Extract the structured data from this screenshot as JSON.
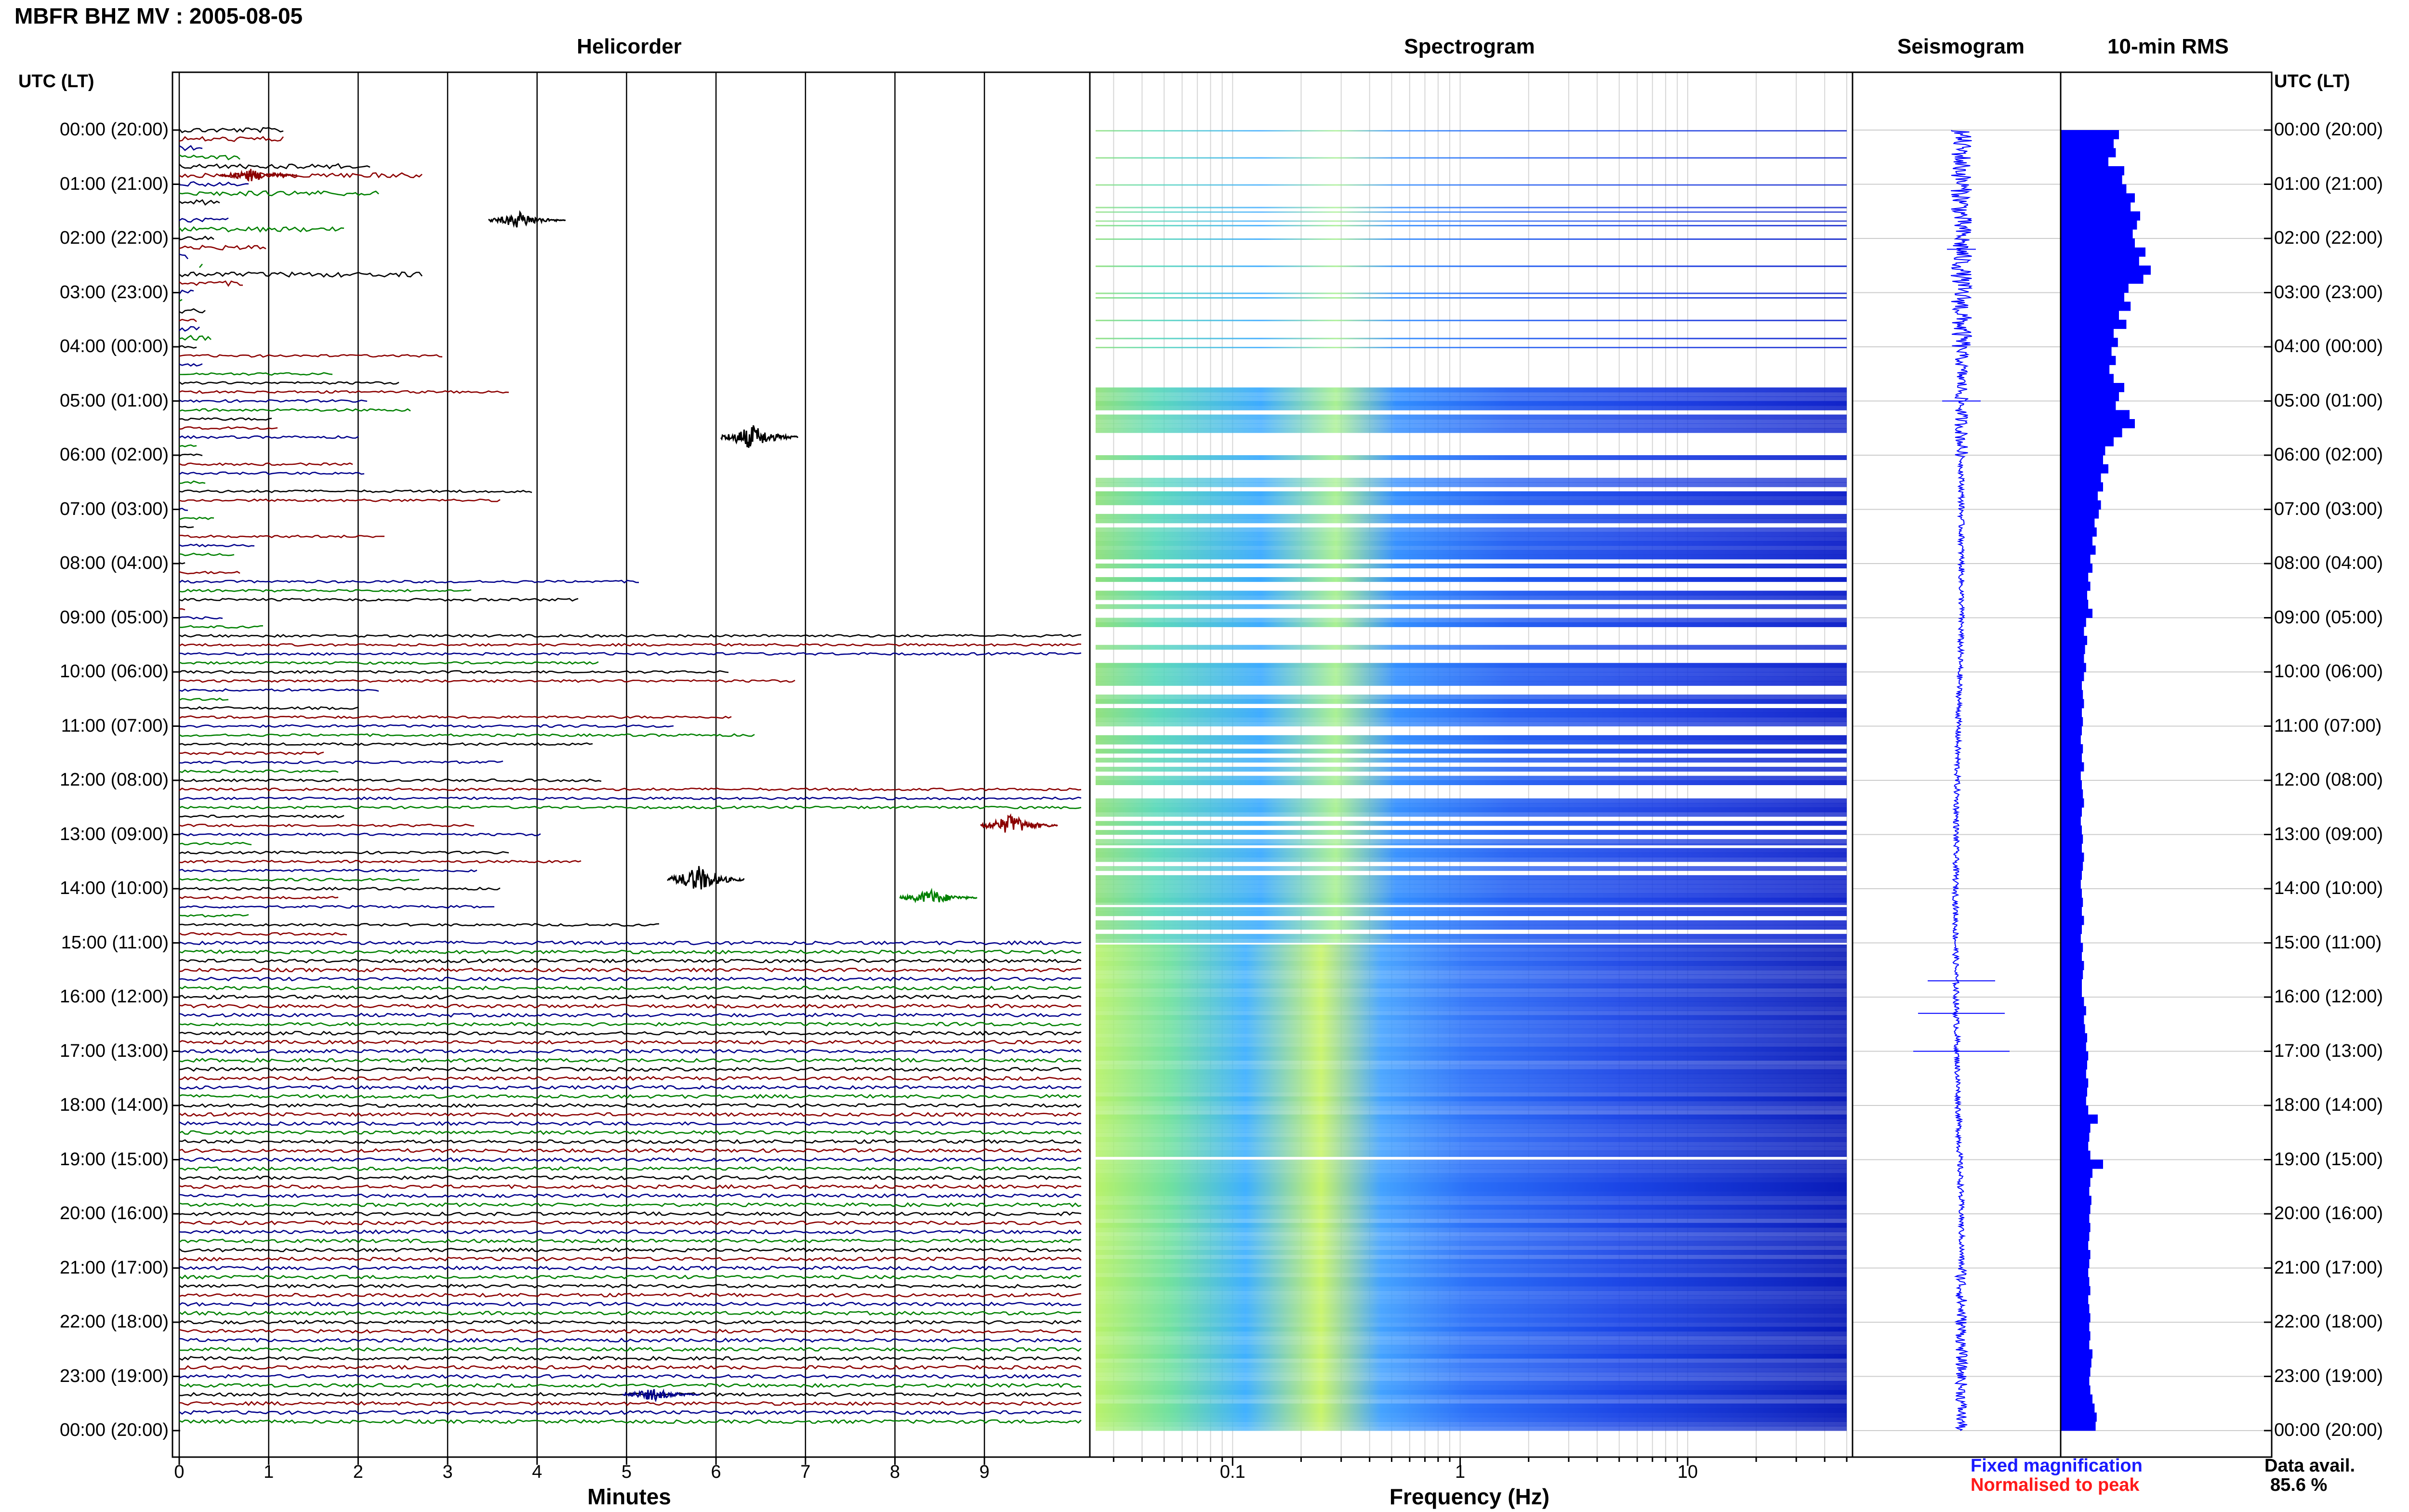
{
  "header": {
    "title": "MBFR BHZ MV : 2005-08-05"
  },
  "panels": {
    "helicorder": "Helicorder",
    "spectrogram": "Spectrogram",
    "seismogram": "Seismogram",
    "rms": "10-min RMS"
  },
  "axes": {
    "utc_left": "UTC (LT)",
    "utc_right": "UTC (LT)",
    "minutes_label": "Minutes",
    "frequency_label": "Frequency (Hz)"
  },
  "time_labels": [
    "00:00 (20:00)",
    "01:00 (21:00)",
    "02:00 (22:00)",
    "03:00 (23:00)",
    "04:00 (00:00)",
    "05:00 (01:00)",
    "06:00 (02:00)",
    "07:00 (03:00)",
    "08:00 (04:00)",
    "09:00 (05:00)",
    "10:00 (06:00)",
    "11:00 (07:00)",
    "12:00 (08:00)",
    "13:00 (09:00)",
    "14:00 (10:00)",
    "15:00 (11:00)",
    "16:00 (12:00)",
    "17:00 (13:00)",
    "18:00 (14:00)",
    "19:00 (15:00)",
    "20:00 (16:00)",
    "21:00 (17:00)",
    "22:00 (18:00)",
    "23:00 (19:00)",
    "00:00 (20:00)"
  ],
  "minute_ticks": [
    "0",
    "1",
    "2",
    "3",
    "4",
    "5",
    "6",
    "7",
    "8",
    "9"
  ],
  "frequency_ticks": [
    "0.1",
    "1",
    "10"
  ],
  "legend": {
    "fixed": "Fixed magnification",
    "normalised": "Normalised to peak"
  },
  "data_availability": {
    "label": "Data avail.",
    "value": "85.6 %"
  },
  "colors": {
    "trace_black": "#000000",
    "trace_red": "#8b0000",
    "trace_blue": "#00008b",
    "trace_green": "#008000",
    "rms_bar": "#0000ff",
    "seismogram": "#0000ff",
    "spectro_low": "#0a1fd6",
    "spectro_mid": "#1f9aff",
    "spectro_high": "#c8ff5a"
  },
  "chart_data": {
    "type": "bar",
    "title": "10-min RMS",
    "xlabel": "",
    "ylabel": "UTC (LT)",
    "rms_relative_10min": [
      0.55,
      0.5,
      0.52,
      0.45,
      0.6,
      0.58,
      0.62,
      0.7,
      0.66,
      0.75,
      0.72,
      0.68,
      0.7,
      0.8,
      0.74,
      0.85,
      0.78,
      0.64,
      0.6,
      0.66,
      0.55,
      0.62,
      0.5,
      0.54,
      0.48,
      0.52,
      0.46,
      0.5,
      0.6,
      0.55,
      0.52,
      0.65,
      0.7,
      0.58,
      0.5,
      0.42,
      0.4,
      0.45,
      0.38,
      0.4,
      0.35,
      0.38,
      0.36,
      0.32,
      0.34,
      0.3,
      0.33,
      0.28,
      0.3,
      0.26,
      0.28,
      0.25,
      0.26,
      0.3,
      0.24,
      0.22,
      0.25,
      0.23,
      0.22,
      0.24,
      0.22,
      0.2,
      0.21,
      0.22,
      0.2,
      0.21,
      0.2,
      0.19,
      0.21,
      0.2,
      0.22,
      0.19,
      0.2,
      0.21,
      0.22,
      0.2,
      0.19,
      0.2,
      0.21,
      0.2,
      0.22,
      0.21,
      0.2,
      0.19,
      0.2,
      0.21,
      0.2,
      0.22,
      0.2,
      0.19,
      0.21,
      0.2,
      0.22,
      0.21,
      0.2,
      0.2,
      0.22,
      0.24,
      0.22,
      0.23,
      0.25,
      0.24,
      0.26,
      0.25,
      0.24,
      0.26,
      0.25,
      0.24,
      0.26,
      0.35,
      0.28,
      0.27,
      0.26,
      0.28,
      0.4,
      0.3,
      0.28,
      0.27,
      0.29,
      0.28,
      0.27,
      0.28,
      0.27,
      0.26,
      0.28,
      0.27,
      0.26,
      0.27,
      0.28,
      0.26,
      0.27,
      0.28,
      0.27,
      0.28,
      0.27,
      0.3,
      0.29,
      0.28,
      0.27,
      0.28,
      0.3,
      0.32,
      0.34,
      0.33
    ]
  }
}
